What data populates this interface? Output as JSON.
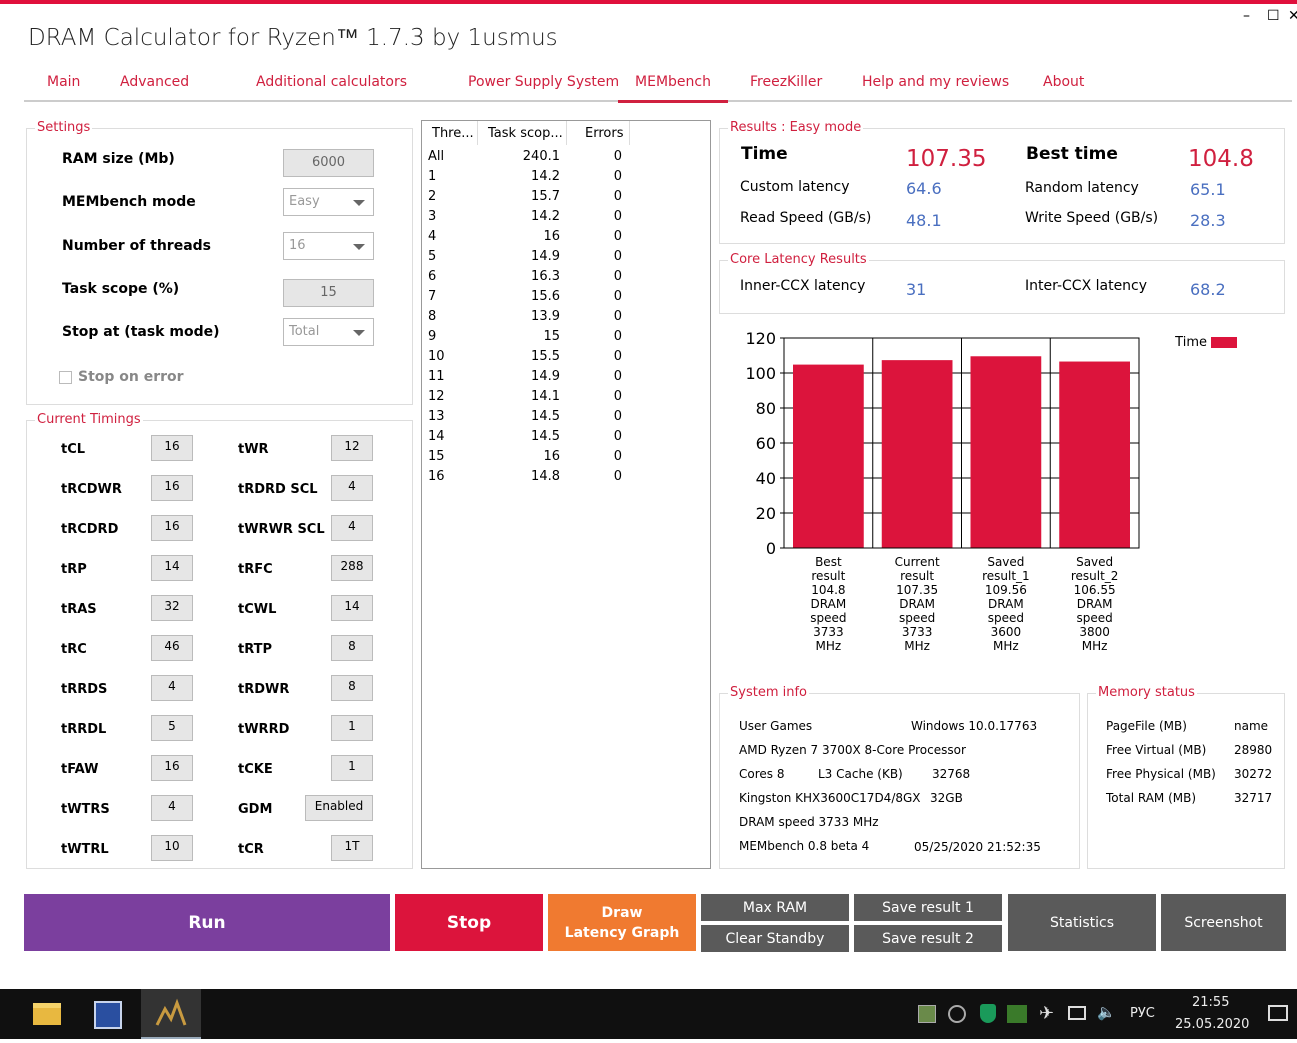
{
  "window": {
    "title": "DRAM Calculator for Ryzen™ 1.7.3 by 1usmus",
    "minimize": "–",
    "maximize": "☐",
    "close": "✕"
  },
  "tabs": [
    {
      "label": "Main"
    },
    {
      "label": "Advanced"
    },
    {
      "label": "Additional calculators"
    },
    {
      "label": "Power Supply System"
    },
    {
      "label": "MEMbench",
      "active": true
    },
    {
      "label": "FreezKiller"
    },
    {
      "label": "Help and my reviews"
    },
    {
      "label": "About"
    }
  ],
  "settings": {
    "title": "Settings",
    "ram_size_label": "RAM size (Mb)",
    "ram_size_value": "6000",
    "mode_label": "MEMbench mode",
    "mode_value": "Easy",
    "threads_label": "Number of threads",
    "threads_value": "16",
    "scope_label": "Task scope (%)",
    "scope_value": "15",
    "stop_label": "Stop at (task mode)",
    "stop_value": "Total",
    "stop_on_error": "Stop on error"
  },
  "timings": {
    "title": "Current Timings",
    "left": [
      {
        "name": "tCL",
        "value": "16"
      },
      {
        "name": "tRCDWR",
        "value": "16"
      },
      {
        "name": "tRCDRD",
        "value": "16"
      },
      {
        "name": "tRP",
        "value": "14"
      },
      {
        "name": "tRAS",
        "value": "32"
      },
      {
        "name": "tRC",
        "value": "46"
      },
      {
        "name": "tRRDS",
        "value": "4"
      },
      {
        "name": "tRRDL",
        "value": "5"
      },
      {
        "name": "tFAW",
        "value": "16"
      },
      {
        "name": "tWTRS",
        "value": "4"
      },
      {
        "name": "tWTRL",
        "value": "10"
      }
    ],
    "right": [
      {
        "name": "tWR",
        "value": "12"
      },
      {
        "name": "tRDRD SCL",
        "value": "4"
      },
      {
        "name": "tWRWR SCL",
        "value": "4"
      },
      {
        "name": "tRFC",
        "value": "288"
      },
      {
        "name": "tCWL",
        "value": "14"
      },
      {
        "name": "tRTP",
        "value": "8"
      },
      {
        "name": "tRDWR",
        "value": "8"
      },
      {
        "name": "tWRRD",
        "value": "1"
      },
      {
        "name": "tCKE",
        "value": "1"
      },
      {
        "name": "GDM",
        "value": "Enabled"
      },
      {
        "name": "tCR",
        "value": "1T"
      }
    ]
  },
  "thread_table": {
    "headers": [
      "Thre...",
      "Task scop...",
      "Errors"
    ],
    "rows": [
      [
        "All",
        "240.1",
        "0"
      ],
      [
        "1",
        "14.2",
        "0"
      ],
      [
        "2",
        "15.7",
        "0"
      ],
      [
        "3",
        "14.2",
        "0"
      ],
      [
        "4",
        "16",
        "0"
      ],
      [
        "5",
        "14.9",
        "0"
      ],
      [
        "6",
        "16.3",
        "0"
      ],
      [
        "7",
        "15.6",
        "0"
      ],
      [
        "8",
        "13.9",
        "0"
      ],
      [
        "9",
        "15",
        "0"
      ],
      [
        "10",
        "15.5",
        "0"
      ],
      [
        "11",
        "14.9",
        "0"
      ],
      [
        "12",
        "14.1",
        "0"
      ],
      [
        "13",
        "14.5",
        "0"
      ],
      [
        "14",
        "14.5",
        "0"
      ],
      [
        "15",
        "16",
        "0"
      ],
      [
        "16",
        "14.8",
        "0"
      ]
    ]
  },
  "results": {
    "title": "Results : Easy mode",
    "time_label": "Time",
    "time_value": "107.35",
    "best_label": "Best time",
    "best_value": "104.8",
    "custom_latency_label": "Custom latency",
    "custom_latency_value": "64.6",
    "random_latency_label": "Random latency",
    "random_latency_value": "65.1",
    "read_label": "Read Speed (GB/s)",
    "read_value": "48.1",
    "write_label": "Write Speed (GB/s)",
    "write_value": "28.3"
  },
  "core_latency": {
    "title": "Core Latency Results",
    "inner_label": "Inner-CCX latency",
    "inner_value": "31",
    "inter_label": "Inter-CCX latency",
    "inter_value": "68.2"
  },
  "chart_data": {
    "type": "bar",
    "categories": [
      "Best result 104.8 DRAM speed 3733 MHz",
      "Current result 107.35 DRAM speed 3733 MHz",
      "Saved result_1 109.56 DRAM speed 3600 MHz",
      "Saved result_2 106.55 DRAM speed 3800 MHz"
    ],
    "category_lines": [
      [
        "Best",
        "result",
        "104.8",
        "DRAM",
        "speed",
        "3733",
        "MHz"
      ],
      [
        "Current",
        "result",
        "107.35",
        "DRAM",
        "speed",
        "3733",
        "MHz"
      ],
      [
        "Saved",
        "result_1",
        "109.56",
        "DRAM",
        "speed",
        "3600",
        "MHz"
      ],
      [
        "Saved",
        "result_2",
        "106.55",
        "DRAM",
        "speed",
        "3800",
        "MHz"
      ]
    ],
    "series": [
      {
        "name": "Time",
        "values": [
          104.8,
          107.35,
          109.56,
          106.55
        ],
        "color": "#dc143c"
      }
    ],
    "ylim": [
      0,
      120
    ],
    "yticks": [
      "0",
      "20",
      "40",
      "60",
      "80",
      "100",
      "120"
    ],
    "legend": "top-right",
    "grid": true
  },
  "system_info": {
    "title": "System info",
    "user": "User Games",
    "os": "Windows 10.0.17763",
    "cpu": "AMD Ryzen 7 3700X 8-Core Processor",
    "cores": "Cores 8",
    "l3_label": "L3 Cache (KB)",
    "l3_value": "32768",
    "ram_model": "Kingston KHX3600C17D4/8GX",
    "ram_size": "32GB",
    "dram_speed": "DRAM speed 3733 MHz",
    "version": "MEMbench 0.8 beta 4",
    "datetime": "05/25/2020 21:52:35"
  },
  "memory_status": {
    "title": "Memory status",
    "rows": [
      [
        "PageFile (MB)",
        "name"
      ],
      [
        "Free Virtual (MB)",
        "28980"
      ],
      [
        "Free Physical (MB)",
        "30272"
      ],
      [
        "Total RAM (MB)",
        "32717"
      ]
    ]
  },
  "buttons": {
    "run": "Run",
    "stop": "Stop",
    "draw": "Draw\nLatency Graph",
    "max_ram": "Max RAM",
    "clear_standby": "Clear Standby",
    "save1": "Save result 1",
    "save2": "Save result 2",
    "statistics": "Statistics",
    "screenshot": "Screenshot"
  },
  "colors": {
    "accent": "#d0203f",
    "run": "#7b3f9e",
    "stop": "#dc143c",
    "draw": "#f07a30",
    "gray_btn": "#5a5a5a",
    "blue_value": "#4a6fc0"
  },
  "taskbar": {
    "lang": "РУС",
    "time": "21:55",
    "date": "25.05.2020"
  }
}
